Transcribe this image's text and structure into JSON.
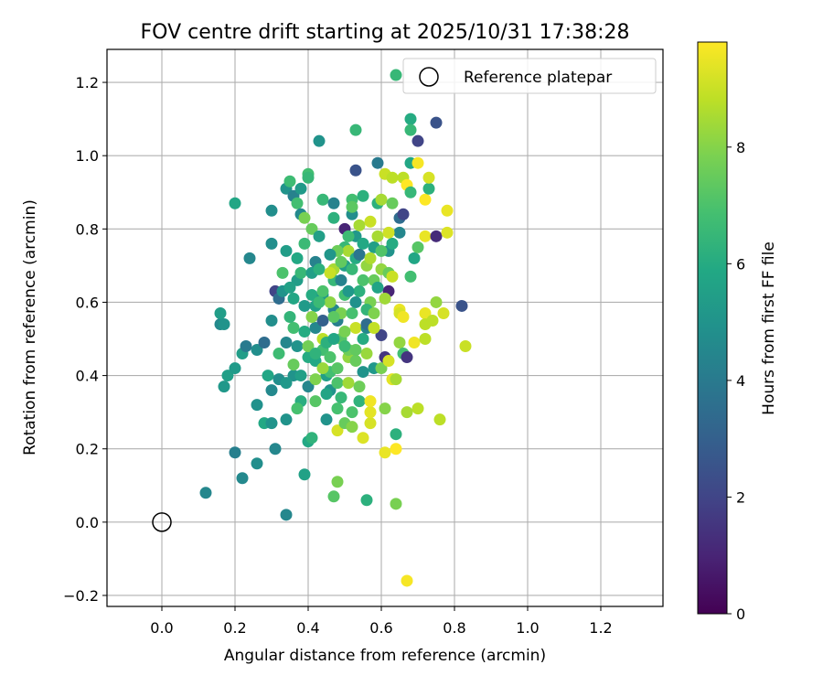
{
  "chart_data": {
    "type": "scatter",
    "title": "FOV centre drift starting at 2025/10/31 17:38:28",
    "xlabel": "Angular distance from reference (arcmin)",
    "ylabel": "Rotation from reference (arcmin)",
    "xlim": [
      -0.15,
      1.37
    ],
    "ylim": [
      -0.23,
      1.29
    ],
    "xticks": [
      0.0,
      0.2,
      0.4,
      0.6,
      0.8,
      1.0,
      1.2
    ],
    "xtick_labels": [
      "0.0",
      "0.2",
      "0.4",
      "0.6",
      "0.8",
      "1.0",
      "1.2"
    ],
    "yticks": [
      -0.2,
      0.0,
      0.2,
      0.4,
      0.6,
      0.8,
      1.0,
      1.2
    ],
    "ytick_labels": [
      "−0.2",
      "0.0",
      "0.2",
      "0.4",
      "0.6",
      "0.8",
      "1.0",
      "1.2"
    ],
    "grid": true,
    "legend": {
      "label": "Reference platepar",
      "location": "upper right"
    },
    "reference_point": {
      "x": 0.0,
      "y": 0.0
    },
    "colorbar": {
      "label": "Hours from first FF file",
      "min": 0,
      "max": 9.8,
      "ticks": [
        0,
        2,
        4,
        6,
        8
      ],
      "tick_labels": [
        "0",
        "2",
        "4",
        "6",
        "8"
      ],
      "colormap": "viridis"
    },
    "points_columns": [
      "x",
      "y",
      "hours"
    ],
    "points": [
      [
        0.12,
        0.08,
        4.5
      ],
      [
        0.22,
        0.12,
        4.6
      ],
      [
        0.2,
        0.19,
        4.2
      ],
      [
        0.26,
        0.16,
        4.8
      ],
      [
        0.34,
        0.02,
        4.5
      ],
      [
        0.31,
        0.2,
        4.5
      ],
      [
        0.39,
        0.13,
        5.6
      ],
      [
        0.17,
        0.37,
        5.2
      ],
      [
        0.18,
        0.4,
        5.5
      ],
      [
        0.2,
        0.42,
        5.3
      ],
      [
        0.22,
        0.46,
        5.4
      ],
      [
        0.23,
        0.48,
        4.0
      ],
      [
        0.26,
        0.47,
        4.8
      ],
      [
        0.28,
        0.49,
        3.5
      ],
      [
        0.16,
        0.54,
        4.6
      ],
      [
        0.16,
        0.57,
        5.4
      ],
      [
        0.17,
        0.54,
        5.0
      ],
      [
        0.2,
        0.87,
        5.8
      ],
      [
        0.24,
        0.72,
        4.5
      ],
      [
        0.26,
        0.32,
        4.9
      ],
      [
        0.28,
        0.27,
        5.9
      ],
      [
        0.3,
        0.27,
        5.0
      ],
      [
        0.29,
        0.4,
        5.8
      ],
      [
        0.3,
        0.36,
        4.6
      ],
      [
        0.3,
        0.55,
        4.8
      ],
      [
        0.3,
        0.76,
        4.8
      ],
      [
        0.3,
        0.85,
        4.8
      ],
      [
        0.31,
        0.63,
        2.0
      ],
      [
        0.32,
        0.61,
        3.5
      ],
      [
        0.33,
        0.63,
        5.0
      ],
      [
        0.32,
        0.39,
        4.8
      ],
      [
        0.34,
        0.49,
        4.5
      ],
      [
        0.34,
        0.28,
        5.0
      ],
      [
        0.34,
        0.74,
        5.4
      ],
      [
        0.34,
        0.91,
        5.0
      ],
      [
        0.35,
        0.93,
        6.7
      ],
      [
        0.36,
        0.89,
        4.3
      ],
      [
        0.36,
        0.61,
        5.8
      ],
      [
        0.37,
        0.48,
        5.0
      ],
      [
        0.36,
        0.4,
        5.0
      ],
      [
        0.38,
        0.4,
        5.5
      ],
      [
        0.36,
        0.53,
        6.8
      ],
      [
        0.37,
        0.66,
        5.4
      ],
      [
        0.37,
        0.87,
        6.8
      ],
      [
        0.38,
        0.91,
        5.3
      ],
      [
        0.38,
        0.84,
        4.6
      ],
      [
        0.38,
        0.68,
        6.5
      ],
      [
        0.39,
        0.83,
        7.8
      ],
      [
        0.39,
        0.52,
        6.0
      ],
      [
        0.4,
        0.95,
        6.8
      ],
      [
        0.4,
        0.94,
        6.5
      ],
      [
        0.4,
        0.37,
        4.5
      ],
      [
        0.4,
        0.45,
        6.0
      ],
      [
        0.41,
        0.8,
        7.5
      ],
      [
        0.41,
        0.68,
        5.5
      ],
      [
        0.41,
        0.62,
        6.0
      ],
      [
        0.42,
        0.53,
        4.5
      ],
      [
        0.42,
        0.71,
        4.3
      ],
      [
        0.42,
        0.59,
        5.6
      ],
      [
        0.42,
        0.44,
        5.9
      ],
      [
        0.42,
        0.33,
        7.2
      ],
      [
        0.43,
        0.78,
        5.5
      ],
      [
        0.44,
        0.88,
        6.5
      ],
      [
        0.43,
        0.69,
        6.2
      ],
      [
        0.43,
        1.04,
        5.0
      ],
      [
        0.44,
        0.62,
        5.3
      ],
      [
        0.44,
        0.5,
        8.8
      ],
      [
        0.44,
        0.47,
        6.8
      ],
      [
        0.45,
        0.28,
        5.0
      ],
      [
        0.45,
        0.4,
        5.5
      ],
      [
        0.46,
        0.36,
        5.0
      ],
      [
        0.46,
        0.41,
        6.8
      ],
      [
        0.46,
        0.45,
        7.0
      ],
      [
        0.47,
        0.66,
        6.5
      ],
      [
        0.47,
        0.69,
        8.5
      ],
      [
        0.47,
        0.83,
        6.2
      ],
      [
        0.47,
        0.87,
        4.3
      ],
      [
        0.47,
        0.58,
        4.5
      ],
      [
        0.48,
        0.55,
        4.2
      ],
      [
        0.48,
        0.42,
        7.2
      ],
      [
        0.48,
        0.38,
        7.0
      ],
      [
        0.49,
        0.34,
        6.5
      ],
      [
        0.48,
        0.25,
        9.2
      ],
      [
        0.47,
        0.07,
        7.2
      ],
      [
        0.48,
        0.11,
        7.8
      ],
      [
        0.49,
        0.5,
        7.2
      ],
      [
        0.49,
        0.57,
        7.8
      ],
      [
        0.5,
        0.62,
        6.8
      ],
      [
        0.5,
        0.7,
        5.5
      ],
      [
        0.5,
        0.75,
        6.5
      ],
      [
        0.5,
        0.8,
        1.0
      ],
      [
        0.5,
        0.27,
        7.5
      ],
      [
        0.51,
        0.74,
        8.5
      ],
      [
        0.51,
        0.45,
        8.2
      ],
      [
        0.51,
        0.47,
        7.6
      ],
      [
        0.52,
        0.88,
        6.8
      ],
      [
        0.52,
        0.84,
        4.8
      ],
      [
        0.52,
        0.86,
        7.3
      ],
      [
        0.52,
        0.69,
        6.5
      ],
      [
        0.52,
        0.3,
        7.0
      ],
      [
        0.52,
        0.26,
        8.0
      ],
      [
        0.53,
        0.96,
        2.5
      ],
      [
        0.53,
        0.78,
        5.2
      ],
      [
        0.53,
        0.72,
        6.0
      ],
      [
        0.53,
        0.53,
        9.0
      ],
      [
        0.53,
        0.44,
        7.5
      ],
      [
        0.54,
        0.63,
        6.2
      ],
      [
        0.54,
        0.73,
        3.8
      ],
      [
        0.54,
        0.81,
        8.5
      ],
      [
        0.54,
        0.33,
        6.3
      ],
      [
        0.55,
        0.89,
        6.2
      ],
      [
        0.55,
        0.41,
        5.0
      ],
      [
        0.55,
        0.23,
        9.3
      ],
      [
        0.56,
        0.46,
        8.3
      ],
      [
        0.56,
        0.53,
        4.5
      ],
      [
        0.56,
        0.54,
        3.5
      ],
      [
        0.56,
        0.7,
        8.2
      ],
      [
        0.56,
        0.06,
        6.2
      ],
      [
        0.57,
        0.27,
        9.2
      ],
      [
        0.57,
        0.3,
        9.4
      ],
      [
        0.57,
        0.33,
        9.6
      ],
      [
        0.57,
        0.82,
        9.0
      ],
      [
        0.57,
        0.6,
        7.8
      ],
      [
        0.58,
        0.66,
        7.5
      ],
      [
        0.58,
        0.75,
        5.5
      ],
      [
        0.58,
        0.42,
        5.2
      ],
      [
        0.59,
        0.87,
        6.2
      ],
      [
        0.59,
        0.98,
        4.0
      ],
      [
        0.59,
        0.78,
        8.5
      ],
      [
        0.6,
        0.51,
        2.0
      ],
      [
        0.6,
        0.42,
        7.8
      ],
      [
        0.6,
        0.69,
        8.2
      ],
      [
        0.6,
        0.88,
        8.5
      ],
      [
        0.61,
        0.19,
        9.5
      ],
      [
        0.61,
        0.31,
        8.0
      ],
      [
        0.61,
        0.45,
        1.5
      ],
      [
        0.61,
        0.95,
        9.0
      ],
      [
        0.62,
        0.68,
        7.5
      ],
      [
        0.62,
        0.44,
        9.2
      ],
      [
        0.62,
        0.74,
        5.0
      ],
      [
        0.62,
        0.63,
        1.0
      ],
      [
        0.63,
        0.39,
        9.4
      ],
      [
        0.63,
        0.87,
        7.5
      ],
      [
        0.63,
        0.94,
        8.8
      ],
      [
        0.63,
        0.76,
        6.0
      ],
      [
        0.63,
        0.67,
        9.0
      ],
      [
        0.64,
        0.39,
        8.5
      ],
      [
        0.64,
        0.24,
        6.2
      ],
      [
        0.64,
        0.05,
        7.8
      ],
      [
        0.64,
        0.2,
        9.8
      ],
      [
        0.65,
        0.49,
        8.2
      ],
      [
        0.65,
        0.58,
        9.5
      ],
      [
        0.65,
        0.57,
        9.2
      ],
      [
        0.65,
        0.79,
        4.5
      ],
      [
        0.65,
        0.83,
        3.5
      ],
      [
        0.66,
        0.84,
        2.0
      ],
      [
        0.66,
        0.94,
        8.8
      ],
      [
        0.66,
        0.46,
        6.8
      ],
      [
        0.66,
        0.56,
        9.6
      ],
      [
        0.67,
        0.45,
        1.5
      ],
      [
        0.67,
        -0.16,
        9.7
      ],
      [
        0.67,
        0.92,
        9.8
      ],
      [
        0.67,
        0.3,
        8.5
      ],
      [
        0.68,
        0.9,
        6.5
      ],
      [
        0.68,
        0.98,
        5.8
      ],
      [
        0.68,
        0.67,
        6.8
      ],
      [
        0.68,
        1.1,
        6.0
      ],
      [
        0.68,
        1.07,
        6.5
      ],
      [
        0.69,
        0.72,
        5.8
      ],
      [
        0.69,
        0.49,
        9.6
      ],
      [
        0.7,
        0.31,
        8.8
      ],
      [
        0.7,
        0.98,
        9.7
      ],
      [
        0.7,
        0.75,
        7.2
      ],
      [
        0.7,
        1.04,
        2.0
      ],
      [
        0.72,
        0.88,
        9.8
      ],
      [
        0.72,
        0.78,
        9.5
      ],
      [
        0.72,
        0.57,
        9.5
      ],
      [
        0.72,
        0.54,
        8.8
      ],
      [
        0.72,
        0.5,
        8.8
      ],
      [
        0.73,
        0.91,
        6.2
      ],
      [
        0.73,
        0.94,
        9.2
      ],
      [
        0.74,
        0.55,
        8.8
      ],
      [
        0.75,
        0.6,
        8.2
      ],
      [
        0.75,
        1.09,
        2.5
      ],
      [
        0.75,
        0.78,
        1.2
      ],
      [
        0.76,
        0.28,
        8.8
      ],
      [
        0.77,
        0.57,
        9.2
      ],
      [
        0.78,
        0.85,
        9.5
      ],
      [
        0.78,
        0.79,
        9.3
      ],
      [
        0.82,
        0.59,
        2.5
      ],
      [
        0.83,
        0.48,
        9.0
      ],
      [
        0.64,
        1.22,
        6.5
      ],
      [
        0.53,
        1.07,
        6.5
      ],
      [
        0.44,
        0.63,
        7.0
      ],
      [
        0.46,
        0.68,
        9.0
      ],
      [
        0.48,
        0.74,
        7.6
      ],
      [
        0.49,
        0.66,
        4.3
      ],
      [
        0.51,
        0.63,
        5.2
      ],
      [
        0.52,
        0.57,
        6.9
      ],
      [
        0.46,
        0.6,
        8.1
      ],
      [
        0.44,
        0.55,
        3.0
      ],
      [
        0.5,
        0.52,
        7.8
      ],
      [
        0.45,
        0.49,
        6.2
      ],
      [
        0.47,
        0.56,
        7.3
      ],
      [
        0.53,
        0.6,
        4.9
      ],
      [
        0.55,
        0.66,
        7.0
      ],
      [
        0.57,
        0.72,
        8.6
      ],
      [
        0.56,
        0.58,
        6.4
      ],
      [
        0.59,
        0.64,
        5.7
      ],
      [
        0.58,
        0.57,
        7.9
      ],
      [
        0.61,
        0.61,
        8.4
      ],
      [
        0.6,
        0.74,
        7.1
      ],
      [
        0.62,
        0.79,
        9.1
      ],
      [
        0.55,
        0.76,
        5.9
      ],
      [
        0.51,
        0.78,
        6.7
      ],
      [
        0.49,
        0.71,
        7.4
      ],
      [
        0.46,
        0.73,
        5.1
      ],
      [
        0.43,
        0.6,
        6.6
      ],
      [
        0.41,
        0.56,
        8.0
      ],
      [
        0.39,
        0.59,
        5.3
      ],
      [
        0.4,
        0.48,
        7.7
      ],
      [
        0.42,
        0.46,
        6.3
      ],
      [
        0.44,
        0.42,
        8.3
      ],
      [
        0.47,
        0.5,
        5.8
      ],
      [
        0.5,
        0.48,
        6.6
      ],
      [
        0.53,
        0.47,
        7.4
      ],
      [
        0.55,
        0.5,
        6.0
      ],
      [
        0.58,
        0.53,
        8.9
      ],
      [
        0.54,
        0.37,
        7.6
      ],
      [
        0.51,
        0.38,
        8.4
      ],
      [
        0.48,
        0.31,
        6.9
      ],
      [
        0.45,
        0.35,
        5.7
      ],
      [
        0.42,
        0.39,
        7.9
      ],
      [
        0.38,
        0.33,
        6.1
      ],
      [
        0.36,
        0.43,
        7.5
      ],
      [
        0.35,
        0.56,
        6.4
      ],
      [
        0.37,
        0.72,
        5.9
      ],
      [
        0.39,
        0.76,
        6.6
      ],
      [
        0.33,
        0.68,
        7.0
      ],
      [
        0.35,
        0.64,
        5.6
      ],
      [
        0.32,
        0.46,
        6.7
      ],
      [
        0.34,
        0.38,
        5.2
      ],
      [
        0.37,
        0.31,
        6.9
      ],
      [
        0.4,
        0.22,
        5.9
      ],
      [
        0.41,
        0.23,
        6.3
      ]
    ]
  }
}
